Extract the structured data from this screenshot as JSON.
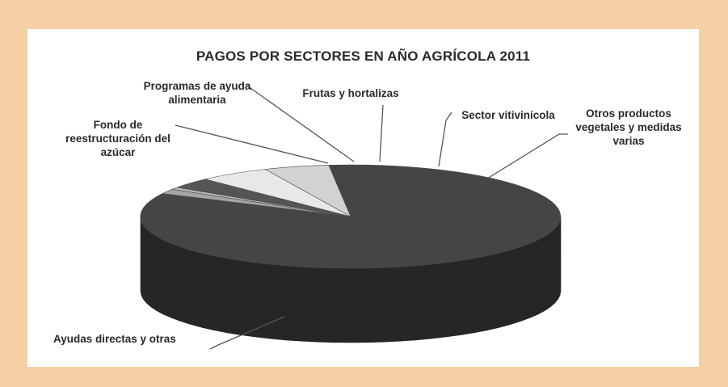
{
  "chart_data": {
    "type": "pie",
    "title": "PAGOS POR SECTORES EN AÑO AGRÍCOLA 2011",
    "slices": [
      {
        "label": [
          "Ayudas directas y otras"
        ],
        "value": 84.0,
        "color": "#454545"
      },
      {
        "label": [
          "Fondo de",
          "reestructuración del",
          "azúcar"
        ],
        "value": 1.5,
        "color": "#a5a5a5"
      },
      {
        "label": [
          "Programas de ayuda",
          "alimentaria"
        ],
        "value": 0.7,
        "color": "#b8b8b8"
      },
      {
        "label": [
          "Frutas y hortalizas"
        ],
        "value": 3.3,
        "color": "#555555"
      },
      {
        "label": [
          "Sector vitivinícola"
        ],
        "value": 5.5,
        "color": "#e8e8e8"
      },
      {
        "label": [
          "Otros productos",
          "vegetales y medidas",
          "varias"
        ],
        "value": 5.0,
        "color": "#d2d2d2"
      }
    ]
  }
}
